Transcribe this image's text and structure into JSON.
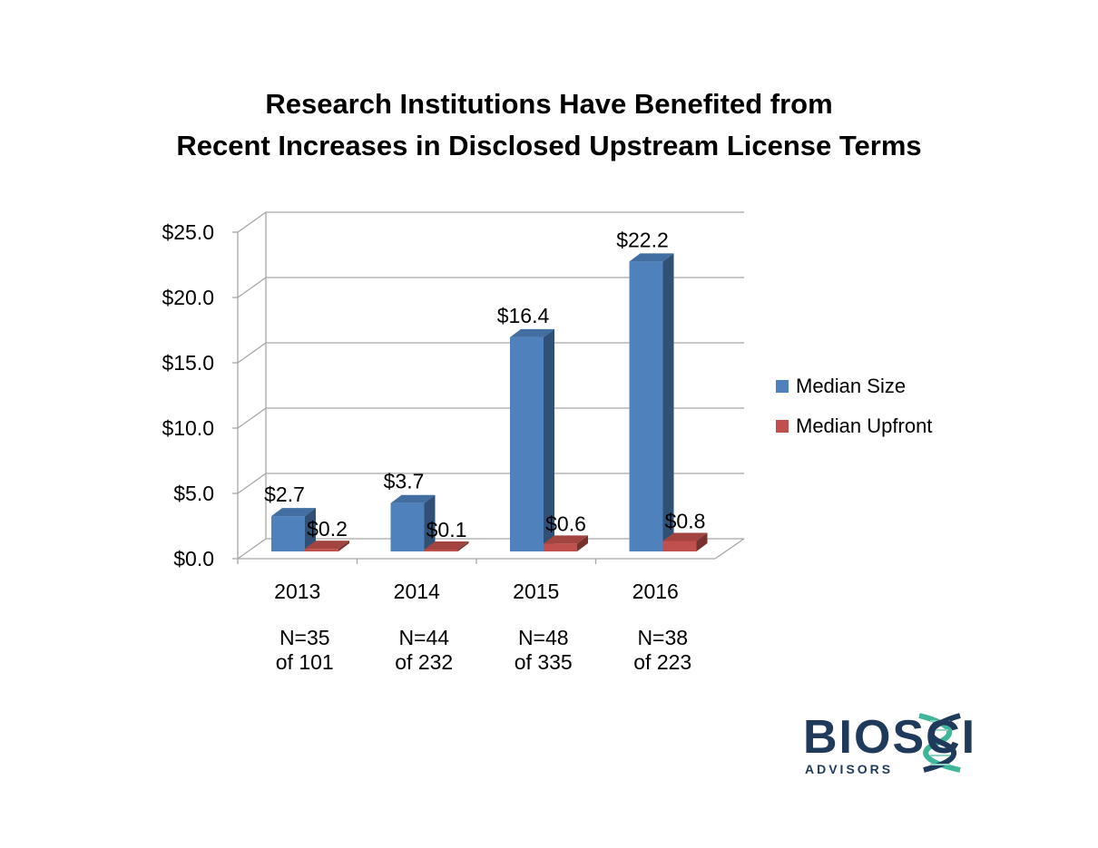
{
  "title_line1": "Research Institutions Have Benefited from",
  "title_line2": "Recent Increases in Disclosed Upstream License Terms",
  "logo": {
    "text": "BIOSCI",
    "sub": "ADVISORS",
    "color": "#1f3a5a",
    "accent": "#3fb59a"
  },
  "chart_data": {
    "type": "bar",
    "title": "Research Institutions Have Benefited from Recent Increases in Disclosed Upstream License Terms",
    "categories": [
      "2013",
      "2014",
      "2015",
      "2016"
    ],
    "category_notes": [
      [
        "N=35",
        "of 101"
      ],
      [
        "N=44",
        "of 232"
      ],
      [
        "N=48",
        "of 335"
      ],
      [
        "N=38",
        "of 223"
      ]
    ],
    "series": [
      {
        "name": "Median Size",
        "values": [
          2.7,
          3.7,
          16.4,
          22.2
        ],
        "labels": [
          "$2.7",
          "$3.7",
          "$16.4",
          "$22.2"
        ],
        "color": "#4f81bd"
      },
      {
        "name": "Median Upfront",
        "values": [
          0.2,
          0.1,
          0.6,
          0.8
        ],
        "labels": [
          "$0.2",
          "$0.1",
          "$0.6",
          "$0.8"
        ],
        "color": "#c0504d"
      }
    ],
    "yticks": [
      0,
      5,
      10,
      15,
      20,
      25
    ],
    "ytick_labels": [
      "$0.0",
      "$5.0",
      "$10.0",
      "$15.0",
      "$20.0",
      "$25.0"
    ],
    "ylim": [
      0,
      25
    ],
    "grid": true,
    "legend": "right",
    "style": "3d-clustered-column"
  }
}
